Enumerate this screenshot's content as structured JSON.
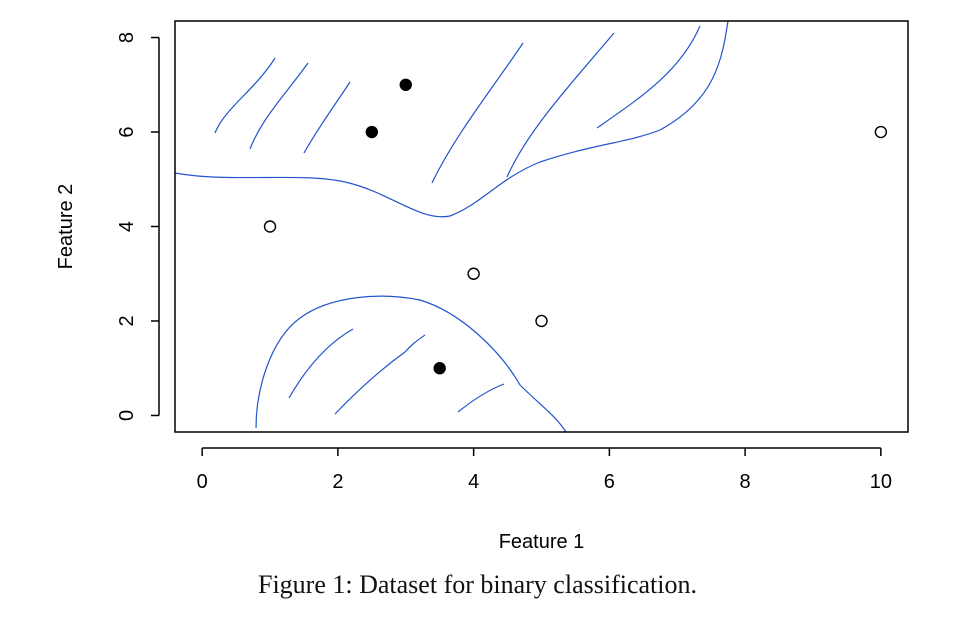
{
  "caption": "Figure 1: Dataset for binary classification.",
  "chart_data": {
    "type": "scatter",
    "xlabel": "Feature 1",
    "ylabel": "Feature 2",
    "xlim": [
      -0.4,
      10.4
    ],
    "ylim": [
      -0.35,
      8.35
    ],
    "x_ticks": [
      0,
      2,
      4,
      6,
      8,
      10
    ],
    "y_ticks": [
      0,
      2,
      4,
      6,
      8
    ],
    "x_tick_labels": [
      "0",
      "2",
      "4",
      "6",
      "8",
      "10"
    ],
    "y_tick_labels": [
      "0",
      "2",
      "4",
      "6",
      "8"
    ],
    "grid": false,
    "legend": "none",
    "series": [
      {
        "marker": "filled-circle",
        "color": "#000000",
        "points": [
          [
            2.5,
            6
          ],
          [
            3,
            7
          ],
          [
            3.5,
            1
          ]
        ]
      },
      {
        "marker": "open-circle",
        "color": "#000000",
        "points": [
          [
            1,
            4
          ],
          [
            4,
            3
          ],
          [
            5,
            2
          ],
          [
            10,
            6
          ]
        ]
      }
    ],
    "boundary_color": "#2255cc"
  }
}
